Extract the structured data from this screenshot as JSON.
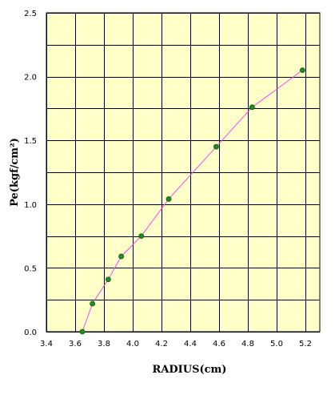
{
  "chart_data": {
    "type": "line",
    "title": "",
    "xlabel": "RADIUS(cm)",
    "ylabel": "Pe(kgf/cm²)",
    "xlim": [
      3.4,
      5.3
    ],
    "ylim": [
      0.0,
      2.5
    ],
    "x_ticks": [
      "3.4",
      "3.6",
      "3.8",
      "4.0",
      "4.2",
      "4.4",
      "4.6",
      "4.8",
      "5.0",
      "5.2"
    ],
    "y_ticks": [
      "0.0",
      "0.5",
      "1.0",
      "1.5",
      "2.0",
      "2.5"
    ],
    "x_tick_values": [
      3.4,
      3.6,
      3.8,
      4.0,
      4.2,
      4.4,
      4.6,
      4.8,
      5.0,
      5.2
    ],
    "y_tick_values": [
      0.0,
      0.5,
      1.0,
      1.5,
      2.0,
      2.5
    ],
    "x_gridlines": [
      3.4,
      3.6,
      3.8,
      4.0,
      4.2,
      4.4,
      4.6,
      4.8,
      5.0,
      5.2
    ],
    "y_gridlines": [
      0.0,
      0.25,
      0.5,
      0.75,
      1.0,
      1.25,
      1.5,
      1.75,
      2.0,
      2.25,
      2.5
    ],
    "grid": true,
    "legend": "none",
    "series": [
      {
        "x": [
          3.65,
          3.72,
          3.83,
          3.92,
          4.06,
          4.25,
          4.58,
          4.83,
          5.18
        ],
        "y": [
          0.0,
          0.22,
          0.41,
          0.59,
          0.75,
          1.04,
          1.45,
          1.76,
          2.05
        ]
      }
    ],
    "colors": {
      "plot_background": "#ffffc8",
      "grid": "#000000",
      "line": "#ff44ff",
      "marker_fill": "#228b22",
      "marker_stroke": "#0b5d0b"
    }
  }
}
